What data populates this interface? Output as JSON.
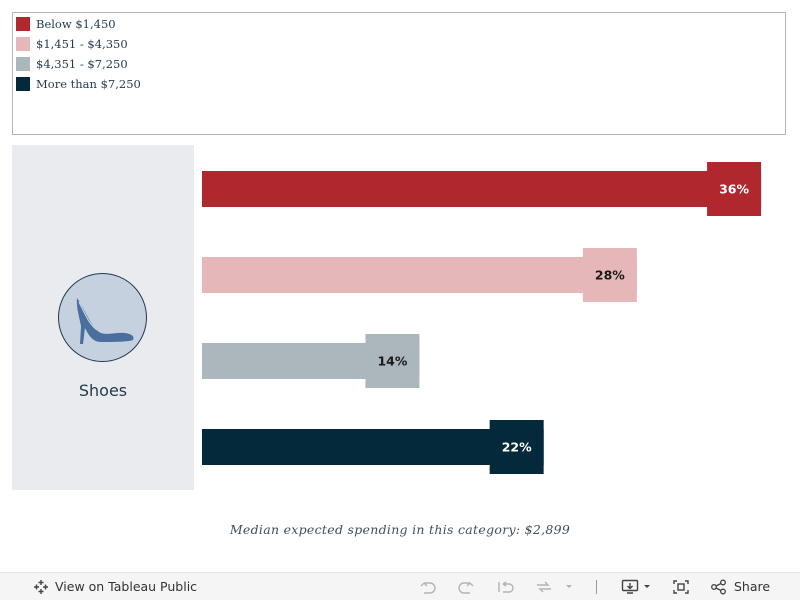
{
  "chart_data": {
    "type": "bar",
    "orientation": "horizontal",
    "category": "Shoes",
    "series": [
      {
        "name": "Below $1,450",
        "value": 36,
        "label": "36%",
        "color": "#b0282e",
        "label_color": "#ffffff"
      },
      {
        "name": "$1,451 - $4,350",
        "value": 28,
        "label": "28%",
        "color": "#e5b7b8",
        "label_color": "#1a1a1a"
      },
      {
        "name": "$4,351 - $7,250",
        "value": 14,
        "label": "14%",
        "color": "#abb7bd",
        "label_color": "#1a1a1a"
      },
      {
        "name": "More than $7,250",
        "value": 22,
        "label": "22%",
        "color": "#04293b",
        "label_color": "#ffffff"
      }
    ],
    "xlim": [
      0,
      40
    ],
    "legend_position": "top-left",
    "footnote": "Median expected spending in this category: $2,899"
  },
  "category_panel": {
    "label": "Shoes",
    "icon": "high-heel-shoe-icon"
  },
  "toolbar": {
    "view_label": "View on Tableau Public",
    "share_label": "Share"
  }
}
